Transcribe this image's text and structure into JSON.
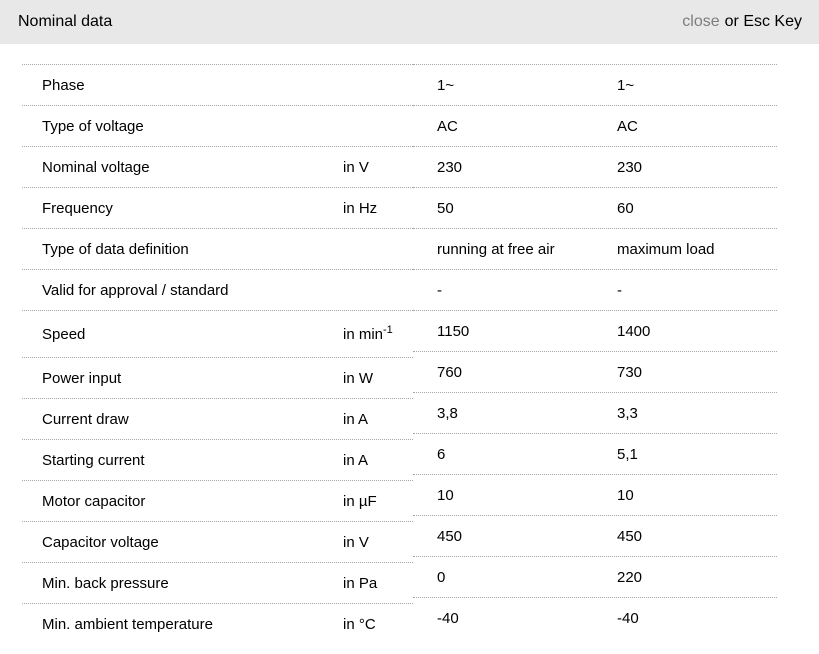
{
  "header": {
    "title": "Nominal data",
    "close_label": "close",
    "close_suffix": "or Esc Key"
  },
  "colors": {
    "header_bg": "#e8e8e8",
    "close_link": "#7d7d7d",
    "border_dotted": "#a6a6a6",
    "text": "#000000"
  },
  "table": {
    "rows": [
      {
        "label": "Phase",
        "unit": "",
        "unit_sup": "",
        "value1": "1~",
        "value2": "1~"
      },
      {
        "label": "Type of voltage",
        "unit": "",
        "unit_sup": "",
        "value1": "AC",
        "value2": "AC"
      },
      {
        "label": "Nominal voltage",
        "unit": "in V",
        "unit_sup": "",
        "value1": "230",
        "value2": "230"
      },
      {
        "label": "Frequency",
        "unit": "in Hz",
        "unit_sup": "",
        "value1": "50",
        "value2": "60"
      },
      {
        "label": "Type of data definition",
        "unit": "",
        "unit_sup": "",
        "value1": "running at free air",
        "value2": "maximum load"
      },
      {
        "label": "Valid for approval / standard",
        "unit": "",
        "unit_sup": "",
        "value1": "-",
        "value2": "-"
      },
      {
        "label": "Speed",
        "unit": "in min",
        "unit_sup": "-1",
        "value1": "1150",
        "value2": "1400"
      },
      {
        "label": "Power input",
        "unit": "in W",
        "unit_sup": "",
        "value1": "760",
        "value2": "730"
      },
      {
        "label": "Current draw",
        "unit": "in A",
        "unit_sup": "",
        "value1": "3,8",
        "value2": "3,3"
      },
      {
        "label": "Starting current",
        "unit": "in A",
        "unit_sup": "",
        "value1": "6",
        "value2": "5,1"
      },
      {
        "label": "Motor capacitor",
        "unit": "in µF",
        "unit_sup": "",
        "value1": "10",
        "value2": "10"
      },
      {
        "label": "Capacitor voltage",
        "unit": "in V",
        "unit_sup": "",
        "value1": "450",
        "value2": "450"
      },
      {
        "label": "Min. back pressure",
        "unit": "in Pa",
        "unit_sup": "",
        "value1": "0",
        "value2": "220"
      },
      {
        "label": "Min. ambient temperature",
        "unit": "in °C",
        "unit_sup": "",
        "value1": "-40",
        "value2": "-40"
      }
    ]
  }
}
